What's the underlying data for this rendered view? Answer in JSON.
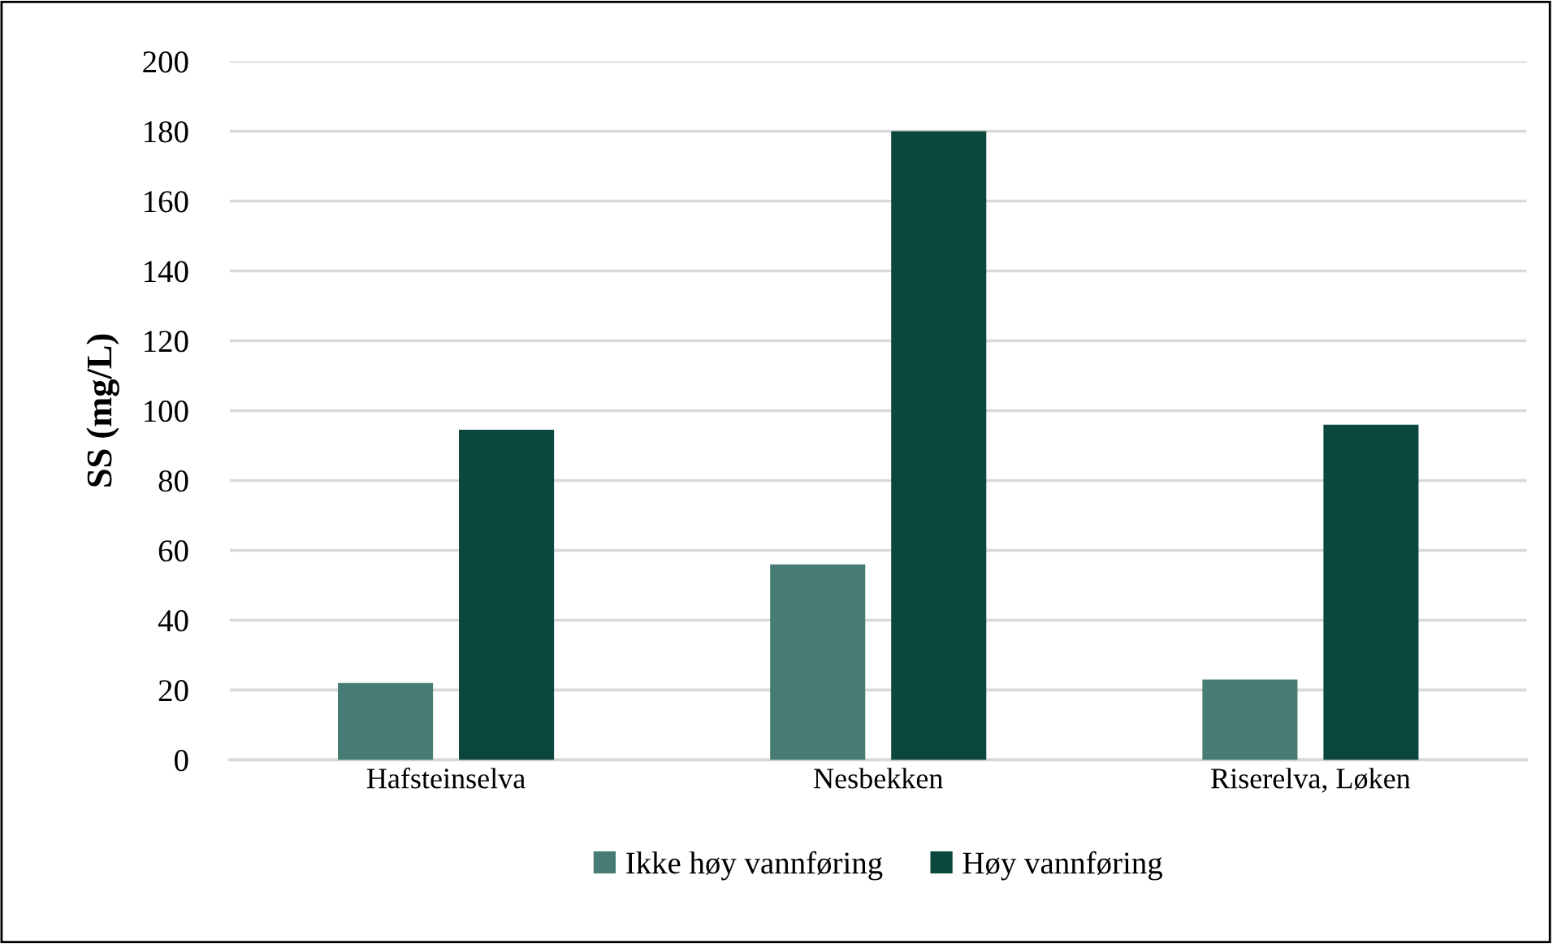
{
  "chart_data": {
    "type": "bar",
    "ylabel": "SS (mg/L)",
    "categories": [
      "Hafsteinselva",
      "Nesbekken",
      "Riserelva, Løken"
    ],
    "series": [
      {
        "name": "Ikke høy vannføring",
        "color": "#467c74",
        "values": [
          22,
          56,
          23
        ]
      },
      {
        "name": "Høy vannføring",
        "color": "#0b473d",
        "values": [
          94.5,
          180,
          96
        ]
      }
    ],
    "ylim": [
      0,
      200
    ],
    "yticks": [
      0,
      20,
      40,
      60,
      80,
      100,
      120,
      140,
      160,
      180,
      200
    ],
    "grid": "y",
    "legend": "bottom"
  }
}
